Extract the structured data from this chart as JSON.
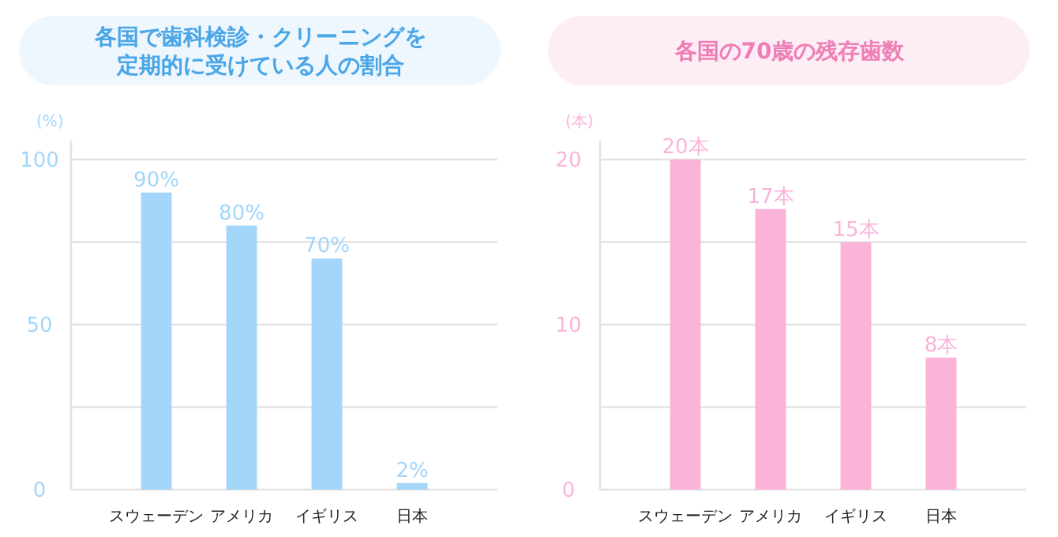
{
  "chart_data": [
    {
      "type": "bar",
      "title": "各国で歯科検診・クリーニングを定期的に受けている人の割合",
      "ylabel": "(%)",
      "categories": [
        "スウェーデン",
        "アメリカ",
        "イギリス",
        "日本"
      ],
      "values": [
        90,
        80,
        70,
        2
      ],
      "color": "#a3d6fa",
      "value_labels": [
        "90%",
        "80%",
        "70%",
        "2%"
      ],
      "ylim": [
        0,
        100
      ],
      "yticks": [
        0,
        {
          "value": 25,
          "label": null
        },
        50,
        {
          "value": 75,
          "label": null
        },
        100
      ],
      "grid": "y"
    },
    {
      "type": "bar",
      "title": "各国の70歳の残存歯数",
      "ylabel": "(本)",
      "categories": [
        "スウェーデン",
        "アメリカ",
        "イギリス",
        "日本"
      ],
      "values": [
        20,
        17,
        15,
        8
      ],
      "color": "#fbb3d9",
      "value_labels": [
        "20本",
        "17本",
        "15本",
        "8本"
      ],
      "ylim": [
        0,
        20
      ],
      "yticks": [
        0,
        {
          "value": 5,
          "label": null
        },
        10,
        {
          "value": 15,
          "label": null
        },
        20
      ],
      "grid": "y"
    }
  ]
}
